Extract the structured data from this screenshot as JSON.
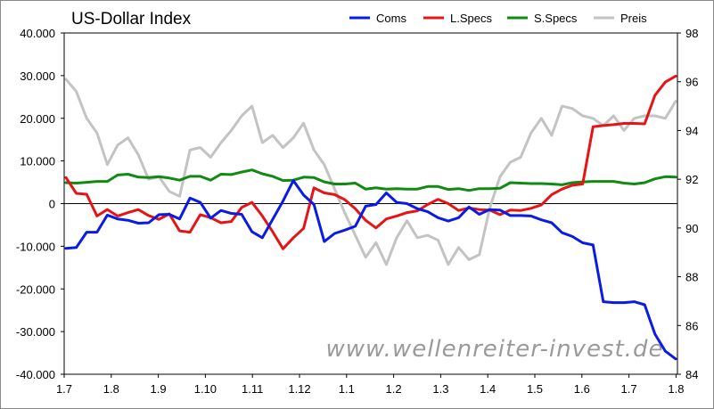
{
  "chart_data": {
    "type": "line",
    "title": "US-Dollar Index",
    "watermark": "www.wellenreiter-invest.de",
    "x_ticks": [
      "1.7",
      "1.8",
      "1.9",
      "1.10",
      "1.11",
      "1.12",
      "1.1",
      "1.2",
      "1.3",
      "1.4",
      "1.5",
      "1.6",
      "1.7",
      "1.8"
    ],
    "left_axis": {
      "min": -40000,
      "max": 40000,
      "ticks": [
        "40.000",
        "30.000",
        "20.000",
        "10.000",
        "0",
        "-10.000",
        "-20.000",
        "-30.000",
        "-40.000"
      ]
    },
    "right_axis": {
      "min": 84,
      "max": 98,
      "ticks": [
        "98",
        "96",
        "94",
        "92",
        "90",
        "88",
        "86",
        "84"
      ]
    },
    "legend_position": "top-right",
    "zero_line": true,
    "series": [
      {
        "name": "Coms",
        "color": "#0a1be6",
        "axis": "left",
        "values": [
          -10500,
          -10300,
          -6700,
          -6700,
          -2700,
          -3600,
          -3900,
          -4600,
          -4500,
          -2600,
          -2500,
          -3600,
          1300,
          300,
          -3400,
          -1600,
          -2300,
          -2500,
          -6600,
          -8000,
          -3700,
          600,
          5400,
          2000,
          -200,
          -8900,
          -7000,
          -6200,
          -5300,
          -600,
          -200,
          2500,
          300,
          0,
          -1200,
          -1900,
          -3300,
          -4100,
          -3300,
          -800,
          -2500,
          -1400,
          -1500,
          -2800,
          -2800,
          -2900,
          -3800,
          -4500,
          -6800,
          -7700,
          -9200,
          -9700,
          -23000,
          -23200,
          -23200,
          -23000,
          -23700,
          -30600,
          -34600,
          -36400
        ]
      },
      {
        "name": "L.Specs",
        "color": "#e61414",
        "axis": "left",
        "values": [
          6100,
          2400,
          2200,
          -2900,
          -1400,
          -2900,
          -2100,
          -1400,
          -2800,
          -3700,
          -2400,
          -6400,
          -6700,
          -2600,
          -3300,
          -4500,
          -4200,
          -900,
          300,
          -2900,
          -6600,
          -10600,
          -8000,
          -5800,
          3700,
          2500,
          2100,
          900,
          -1200,
          -3900,
          -5700,
          -3600,
          -2900,
          -2100,
          -1700,
          -200,
          1000,
          0,
          -1600,
          -1000,
          -1400,
          -1500,
          -2600,
          -1500,
          -1600,
          -1100,
          -300,
          2100,
          3400,
          4300,
          4600,
          18000,
          18300,
          18500,
          18800,
          18800,
          18700,
          25400,
          28500,
          29900
        ]
      },
      {
        "name": "S.Specs",
        "color": "#108a10",
        "axis": "left",
        "values": [
          4900,
          4800,
          5000,
          5200,
          5200,
          6700,
          6900,
          6200,
          6100,
          6300,
          6000,
          5500,
          6400,
          6400,
          5500,
          6900,
          6800,
          7400,
          7900,
          7000,
          6400,
          5400,
          5500,
          6200,
          6100,
          5100,
          4600,
          4600,
          4800,
          3400,
          3700,
          3400,
          3500,
          3400,
          3400,
          4000,
          4000,
          3300,
          3500,
          3100,
          3500,
          3500,
          3600,
          4900,
          4800,
          4700,
          4700,
          4600,
          4400,
          4900,
          5100,
          5200,
          5200,
          5200,
          4800,
          4600,
          4900,
          5800,
          6300,
          6200
        ]
      },
      {
        "name": "Preis",
        "color": "#c3c3c3",
        "axis": "right",
        "values": [
          96.1,
          95.6,
          94.5,
          93.9,
          92.6,
          93.4,
          93.7,
          93.0,
          92.0,
          92.1,
          91.5,
          91.3,
          93.2,
          93.3,
          92.9,
          93.5,
          94.0,
          94.6,
          95.0,
          93.5,
          93.8,
          93.3,
          93.7,
          94.3,
          93.2,
          92.6,
          91.6,
          90.6,
          89.7,
          88.8,
          89.4,
          88.5,
          89.6,
          90.3,
          89.6,
          89.7,
          89.5,
          88.5,
          89.2,
          88.7,
          88.9,
          90.8,
          92.1,
          92.7,
          92.9,
          93.9,
          94.5,
          93.8,
          95.0,
          94.9,
          94.6,
          94.5,
          94.2,
          94.6,
          94.0,
          94.5,
          94.6,
          94.6,
          94.5,
          95.2
        ]
      }
    ]
  }
}
